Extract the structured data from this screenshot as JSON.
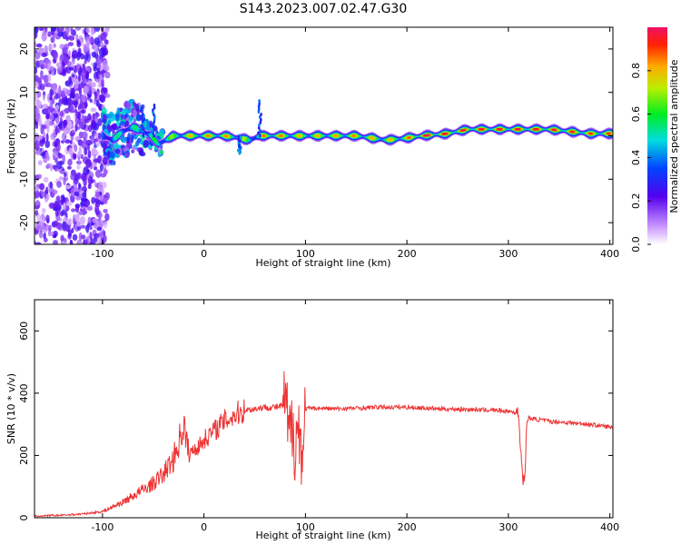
{
  "title": "S143.2023.007.02.47.G30",
  "chart_data": [
    {
      "type": "heatmap",
      "xlabel": "Height of straight line (km)",
      "ylabel": "Frequency (Hz)",
      "xlim": [
        -167,
        403
      ],
      "ylim": [
        -25,
        25
      ],
      "xticks": [
        -100,
        0,
        100,
        200,
        300,
        400
      ],
      "yticks": [
        -20,
        -10,
        0,
        10,
        20
      ],
      "colorbar": {
        "label": "Normalized spectral amplitude",
        "ticks": [
          0.0,
          0.2,
          0.4,
          0.6,
          0.8
        ],
        "range": [
          0,
          1
        ]
      },
      "ridge": {
        "x": [
          -100,
          -90,
          -80,
          -70,
          -60,
          -52,
          -45,
          -38,
          -30,
          -20,
          0,
          20,
          35,
          45,
          55,
          60,
          100,
          150,
          180,
          200,
          215,
          240,
          260,
          300,
          340,
          380,
          403
        ],
        "freq": [
          0,
          -1,
          1,
          2,
          1,
          0,
          -2,
          -1,
          0,
          0,
          0,
          0,
          -0.5,
          -1,
          0,
          0,
          0,
          0,
          -1,
          -0.5,
          0,
          0.5,
          1.5,
          1.5,
          1.5,
          0.5,
          0.5
        ],
        "amplitude": [
          0.4,
          0.45,
          0.5,
          0.5,
          0.45,
          0.5,
          0.55,
          0.6,
          0.6,
          0.7,
          0.75,
          0.75,
          0.7,
          0.55,
          0.6,
          0.8,
          0.7,
          0.75,
          0.7,
          0.75,
          0.9,
          0.85,
          0.85,
          0.85,
          0.85,
          0.8,
          0.8
        ]
      }
    },
    {
      "type": "line",
      "xlabel": "Height of straight line (km)",
      "ylabel": "SNR (10 * v/v)",
      "xlim": [
        -167,
        403
      ],
      "ylim": [
        0,
        700
      ],
      "xticks": [
        -100,
        0,
        100,
        200,
        300,
        400
      ],
      "yticks": [
        0,
        200,
        400,
        600
      ],
      "series": [
        {
          "color": "#ee3333",
          "x": [
            -167,
            -140,
            -120,
            -100,
            -90,
            -80,
            -70,
            -60,
            -50,
            -40,
            -30,
            -25,
            -20,
            -15,
            -10,
            -5,
            0,
            10,
            20,
            30,
            40,
            50,
            60,
            70,
            80,
            85,
            88,
            90,
            92,
            95,
            98,
            100,
            110,
            130,
            150,
            170,
            200,
            230,
            260,
            290,
            305,
            310,
            312,
            314,
            316,
            318,
            320,
            340,
            360,
            380,
            403
          ],
          "y": [
            5,
            8,
            12,
            20,
            35,
            50,
            70,
            90,
            110,
            140,
            190,
            240,
            300,
            200,
            220,
            230,
            250,
            280,
            310,
            330,
            345,
            350,
            355,
            355,
            360,
            250,
            330,
            200,
            300,
            250,
            200,
            350,
            352,
            350,
            352,
            355,
            355,
            350,
            348,
            345,
            340,
            335,
            230,
            130,
            110,
            300,
            320,
            310,
            305,
            300,
            290
          ]
        }
      ]
    }
  ]
}
